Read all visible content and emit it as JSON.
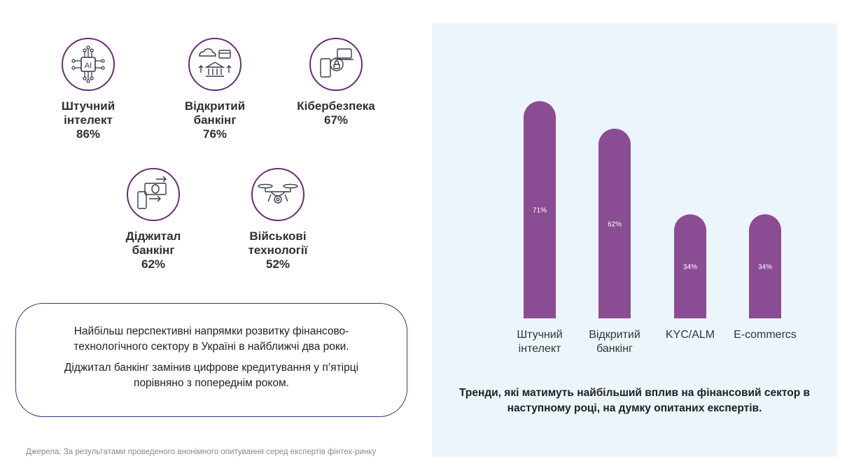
{
  "colors": {
    "purple": "#8a4c93",
    "icon_stroke": "#6a2c78",
    "panel_bg": "#edf5fc",
    "box_border": "#2a3a7a"
  },
  "trends": [
    {
      "icon": "ai-chip-icon",
      "label": "Штучний\nінтелект",
      "percent": "86%"
    },
    {
      "icon": "open-banking-icon",
      "label": "Відкритий\nбанкінг",
      "percent": "76%"
    },
    {
      "icon": "cybersecurity-lock-icon",
      "label": "Кібербезпека",
      "percent": "67%"
    },
    {
      "icon": "digital-banking-icon",
      "label": "Діджитал\nбанкінг",
      "percent": "62%"
    },
    {
      "icon": "drone-icon",
      "label": "Військові\nтехнології",
      "percent": "52%"
    }
  ],
  "summary": {
    "line1": "Найбільш перспективні напрямки розвитку фінансово-технологічного сектору в Україні в найближчі два роки.",
    "line2": "Діджитал банкінг замінив цифрове кредитування у п’ятірці порівняно з попереднім роком."
  },
  "source": "Джерела: За результатами проведеного анонімного опитування серед експертів фінтех-ринку",
  "chart_data": {
    "type": "bar",
    "title": "Тренди, які матимуть найбільший вплив на фінансовий сектор в наступному році, на думку опитаних експертів.",
    "categories": [
      "Штучний\nінтелект",
      "Відкритий\nбанкінг",
      "KYC/ALM",
      "E-commercs"
    ],
    "values": [
      71,
      62,
      34,
      34
    ],
    "value_labels": [
      "71%",
      "62%",
      "34%",
      "34%"
    ],
    "xlabel": "",
    "ylabel": "",
    "ylim": [
      0,
      75
    ],
    "grid": false
  }
}
